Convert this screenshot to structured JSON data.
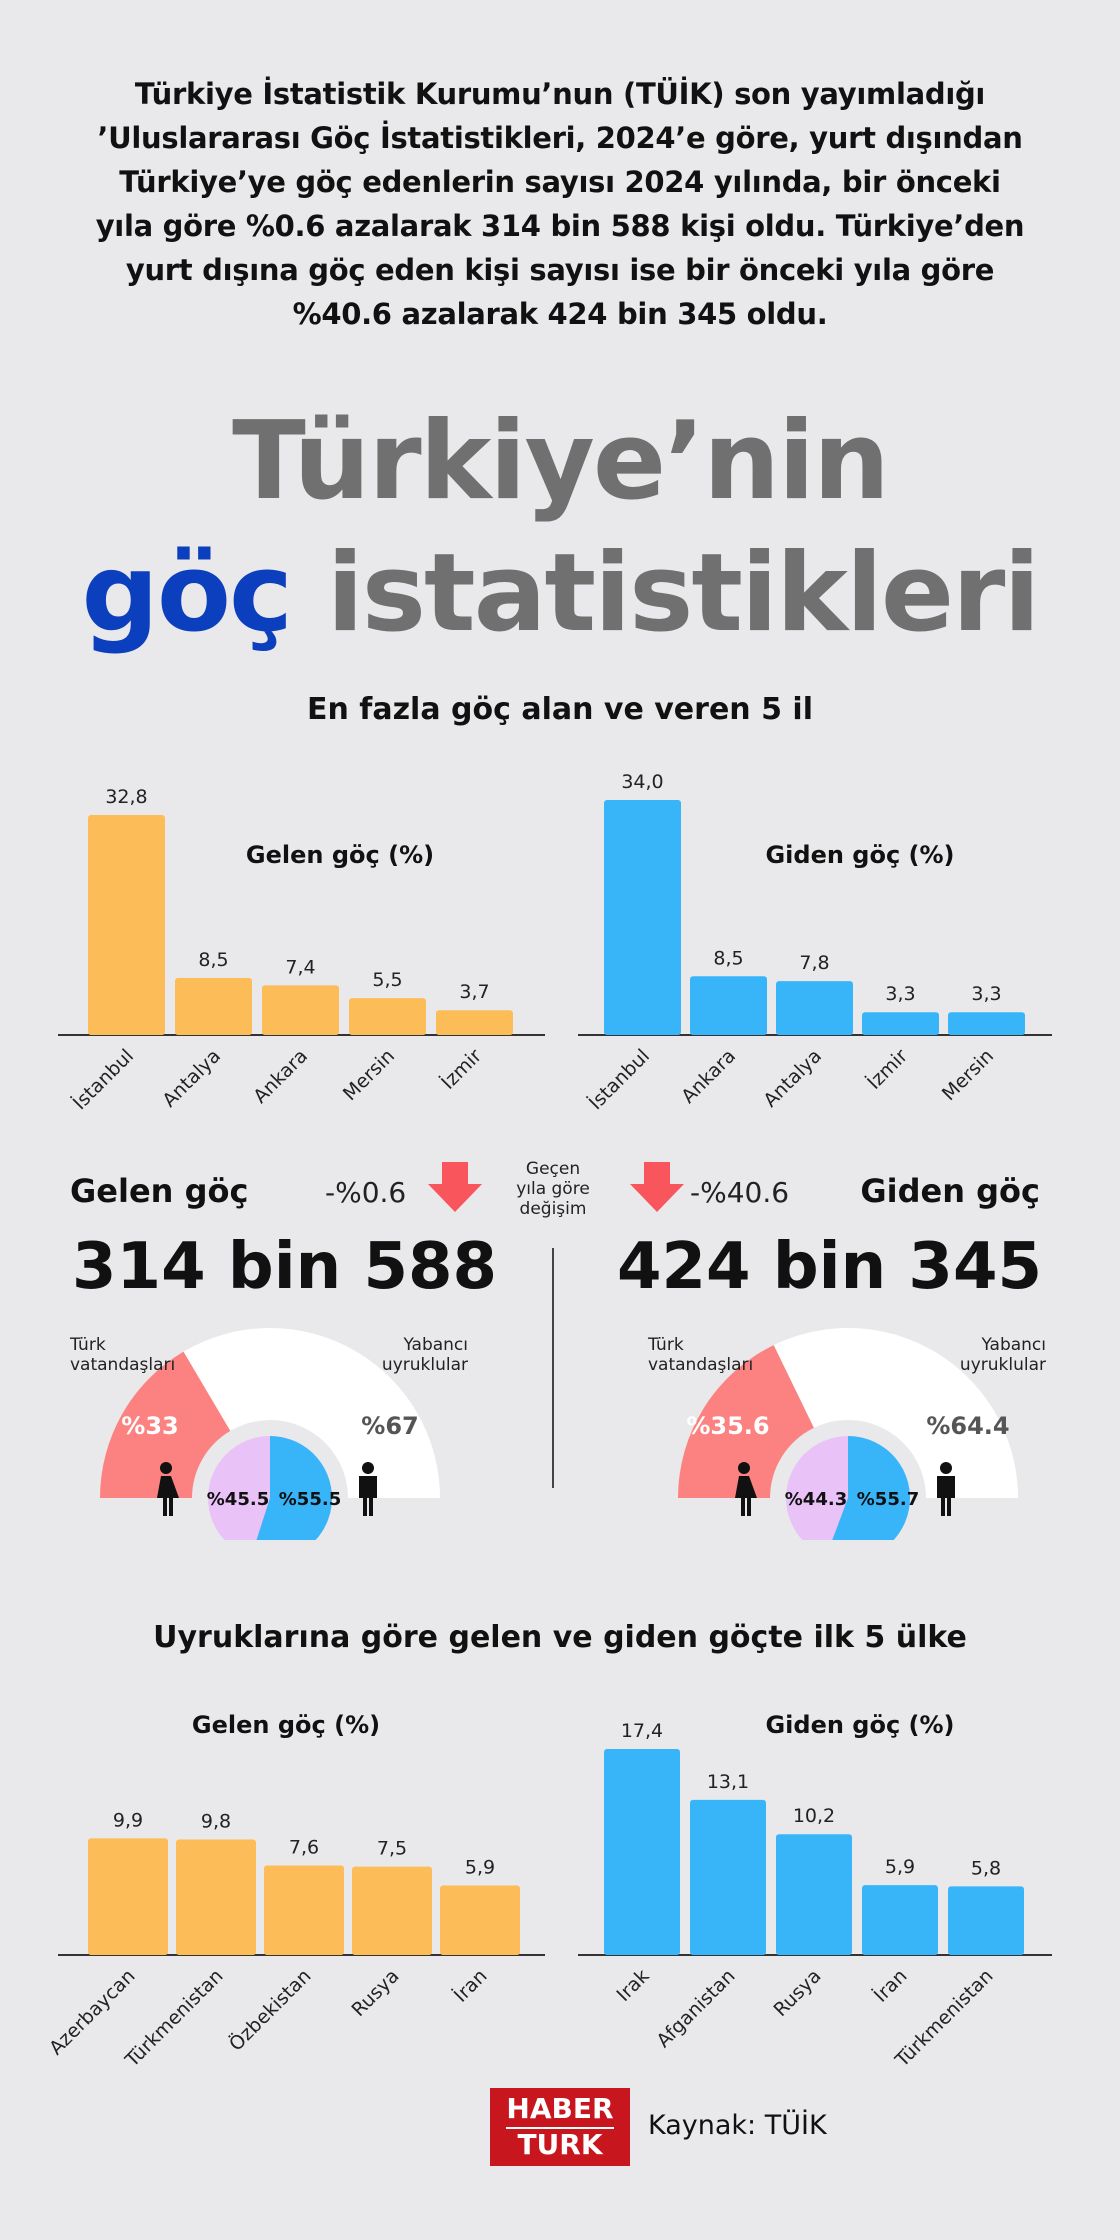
{
  "intro": "Türkiye İstatistik Kurumu’nun (TÜİK) son yayımladığı ’Uluslararası Göç İstatistikleri, 2024’e göre, yurt dışından Türkiye’ye göç edenlerin sayısı 2024 yılında, bir önceki yıla göre %0.6 azalarak 314 bin 588 kişi oldu. Türkiye’den yurt dışına göç eden kişi sayısı ise bir önceki yıla göre %40.6 azalarak 424 bin 345 oldu.",
  "title": {
    "line1": "Türkiye’nin",
    "line2_accent": "göç",
    "line2_rest": "istatistikleri"
  },
  "section1_title": "En fazla göç alan ve veren 5 il",
  "section2_title": "Uyruklarına göre gelen ve giden göçte ilk 5 ülke",
  "summary": {
    "incoming": {
      "label": "Gelen göç",
      "change": "-%0.6",
      "total": "314 bin 588",
      "turk_label": [
        "Türk",
        "vatandaşları"
      ],
      "foreign_label": [
        "Yabancı",
        "uyruklular"
      ],
      "turk_pct": "%33",
      "foreign_pct": "%67",
      "turk_share": 33,
      "female_pct": "%45.5",
      "male_pct": "%55.5",
      "female_share": 45.5,
      "male_share": 55.5
    },
    "outgoing": {
      "label": "Giden göç",
      "change": "-%40.6",
      "total": "424 bin 345",
      "turk_label": [
        "Türk",
        "vatandaşları"
      ],
      "foreign_label": [
        "Yabancı",
        "uyruklular"
      ],
      "turk_pct": "%35.6",
      "foreign_pct": "%64.4",
      "turk_share": 35.6,
      "female_pct": "%44.3",
      "male_pct": "%55.7",
      "female_share": 44.3,
      "male_share": 55.7
    },
    "change_note": [
      "Geçen",
      "yıla göre",
      "değişim"
    ]
  },
  "source": "Kaynak: TÜİK",
  "logo": {
    "line1": "HABER",
    "line2": "TURK"
  },
  "colors": {
    "incoming_bar": "#fcbc58",
    "outgoing_bar": "#38b5f9",
    "turk_gauge": "#fc8282",
    "foreign_gauge": "#ffffff",
    "female": "#e9c2f7",
    "male": "#38b5f9",
    "title_accent": "#0c3fbe",
    "arrow": "#f8555c"
  },
  "chart_data": [
    {
      "type": "bar",
      "title": "Gelen göç (%)",
      "categories": [
        "İstanbul",
        "Antalya",
        "Ankara",
        "Mersin",
        "İzmir"
      ],
      "values": [
        32.8,
        8.5,
        7.4,
        5.5,
        3.7
      ],
      "labels": [
        "32,8",
        "8,5",
        "7,4",
        "5,5",
        "3,7"
      ],
      "ylim": [
        0,
        34
      ]
    },
    {
      "type": "bar",
      "title": "Giden göç (%)",
      "categories": [
        "İstanbul",
        "Ankara",
        "Antalya",
        "İzmir",
        "Mersin"
      ],
      "values": [
        34.0,
        8.5,
        7.8,
        3.3,
        3.3
      ],
      "labels": [
        "34,0",
        "8,5",
        "7,8",
        "3,3",
        "3,3"
      ],
      "ylim": [
        0,
        34
      ]
    },
    {
      "type": "bar",
      "title": "Gelen göç (%)",
      "categories": [
        "Azerbaycan",
        "Türkmenistan",
        "Özbekistan",
        "Rusya",
        "İran"
      ],
      "values": [
        9.9,
        9.8,
        7.6,
        7.5,
        5.9
      ],
      "labels": [
        "9,9",
        "9,8",
        "7,6",
        "7,5",
        "5,9"
      ],
      "ylim": [
        0,
        17.4
      ]
    },
    {
      "type": "bar",
      "title": "Giden göç (%)",
      "categories": [
        "Irak",
        "Afganistan",
        "Rusya",
        "İran",
        "Türkmenistan"
      ],
      "values": [
        17.4,
        13.1,
        10.2,
        5.9,
        5.8
      ],
      "labels": [
        "17,4",
        "13,1",
        "10,2",
        "5,9",
        "5,8"
      ],
      "ylim": [
        0,
        17.4
      ]
    }
  ]
}
